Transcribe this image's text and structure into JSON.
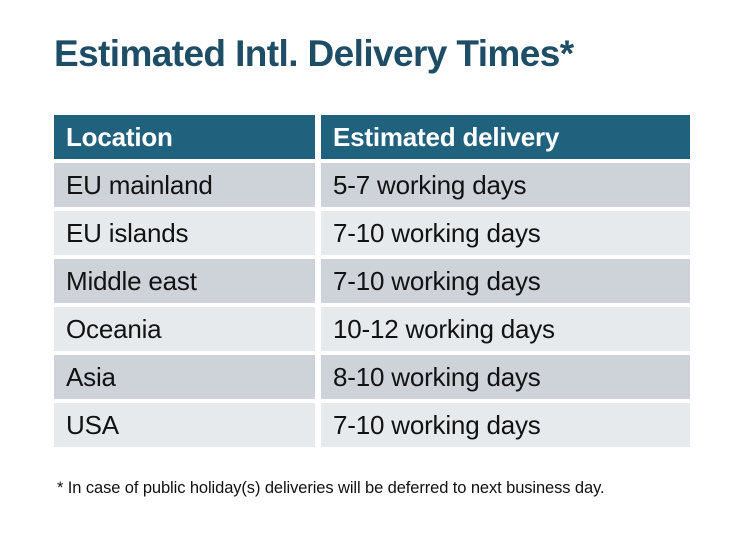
{
  "chart_data": {
    "type": "table",
    "title": "Estimated Intl. Delivery Times*",
    "columns": [
      "Location",
      "Estimated delivery"
    ],
    "rows": [
      [
        "EU mainland",
        "5-7 working days"
      ],
      [
        "EU islands",
        "7-10 working days"
      ],
      [
        "Middle east",
        "7-10 working days"
      ],
      [
        "Oceania",
        "10-12 working days"
      ],
      [
        "Asia",
        "8-10 working days"
      ],
      [
        "USA",
        "7-10 working days"
      ]
    ],
    "footnote": "* In case of public holiday(s) deliveries will be deferred to next business day.",
    "layout": {
      "legend": false,
      "grid": false,
      "row_striping": "alternating"
    }
  },
  "colors": {
    "page_bg": "#ffffff",
    "title_text": "#1e4d66",
    "header_bg": "#20617e",
    "header_text": "#ffffff",
    "row_dark_bg": "#ced2d9",
    "row_light_bg": "#e7eaed",
    "body_text": "#121212"
  }
}
